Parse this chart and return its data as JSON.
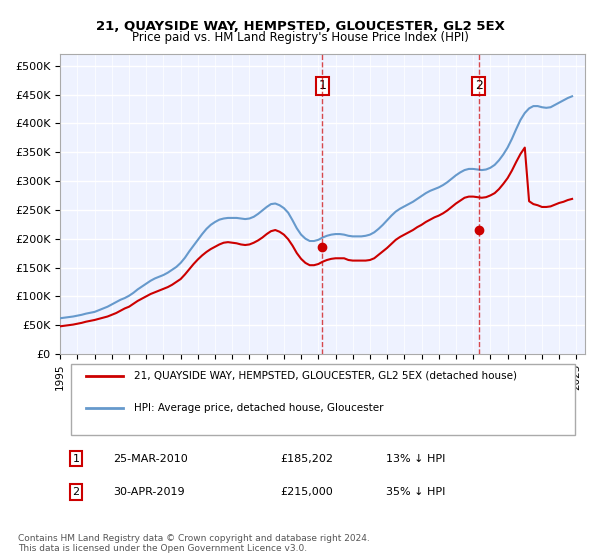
{
  "title": "21, QUAYSIDE WAY, HEMPSTED, GLOUCESTER, GL2 5EX",
  "subtitle": "Price paid vs. HM Land Registry's House Price Index (HPI)",
  "legend_line1": "21, QUAYSIDE WAY, HEMPSTED, GLOUCESTER, GL2 5EX (detached house)",
  "legend_line2": "HPI: Average price, detached house, Gloucester",
  "annotation1_label": "1",
  "annotation1_date": "25-MAR-2010",
  "annotation1_price": "£185,202",
  "annotation1_hpi": "13% ↓ HPI",
  "annotation2_label": "2",
  "annotation2_date": "30-APR-2019",
  "annotation2_price": "£215,000",
  "annotation2_hpi": "35% ↓ HPI",
  "footnote": "Contains HM Land Registry data © Crown copyright and database right 2024.\nThis data is licensed under the Open Government Licence v3.0.",
  "hpi_color": "#6699cc",
  "price_color": "#cc0000",
  "vline_color": "#cc0000",
  "background_color": "#eef2ff",
  "plot_bg_color": "#eef2ff",
  "grid_color": "#ffffff",
  "ylim": [
    0,
    520000
  ],
  "yticks": [
    0,
    50000,
    100000,
    150000,
    200000,
    250000,
    300000,
    350000,
    400000,
    450000,
    500000
  ],
  "ytick_labels": [
    "£0",
    "£50K",
    "£100K",
    "£150K",
    "£200K",
    "£250K",
    "£300K",
    "£350K",
    "£400K",
    "£450K",
    "£500K"
  ],
  "xlim_start": 1995.0,
  "xlim_end": 2025.5,
  "xticks": [
    1995,
    1996,
    1997,
    1998,
    1999,
    2000,
    2001,
    2002,
    2003,
    2004,
    2005,
    2006,
    2007,
    2008,
    2009,
    2010,
    2011,
    2012,
    2013,
    2014,
    2015,
    2016,
    2017,
    2018,
    2019,
    2020,
    2021,
    2022,
    2023,
    2024,
    2025
  ],
  "sale1_x": 2010.23,
  "sale1_y": 185202,
  "sale2_x": 2019.33,
  "sale2_y": 215000,
  "hpi_x": [
    1995.0,
    1995.25,
    1995.5,
    1995.75,
    1996.0,
    1996.25,
    1996.5,
    1996.75,
    1997.0,
    1997.25,
    1997.5,
    1997.75,
    1998.0,
    1998.25,
    1998.5,
    1998.75,
    1999.0,
    1999.25,
    1999.5,
    1999.75,
    2000.0,
    2000.25,
    2000.5,
    2000.75,
    2001.0,
    2001.25,
    2001.5,
    2001.75,
    2002.0,
    2002.25,
    2002.5,
    2002.75,
    2003.0,
    2003.25,
    2003.5,
    2003.75,
    2004.0,
    2004.25,
    2004.5,
    2004.75,
    2005.0,
    2005.25,
    2005.5,
    2005.75,
    2006.0,
    2006.25,
    2006.5,
    2006.75,
    2007.0,
    2007.25,
    2007.5,
    2007.75,
    2008.0,
    2008.25,
    2008.5,
    2008.75,
    2009.0,
    2009.25,
    2009.5,
    2009.75,
    2010.0,
    2010.25,
    2010.5,
    2010.75,
    2011.0,
    2011.25,
    2011.5,
    2011.75,
    2012.0,
    2012.25,
    2012.5,
    2012.75,
    2013.0,
    2013.25,
    2013.5,
    2013.75,
    2014.0,
    2014.25,
    2014.5,
    2014.75,
    2015.0,
    2015.25,
    2015.5,
    2015.75,
    2016.0,
    2016.25,
    2016.5,
    2016.75,
    2017.0,
    2017.25,
    2017.5,
    2017.75,
    2018.0,
    2018.25,
    2018.5,
    2018.75,
    2019.0,
    2019.25,
    2019.5,
    2019.75,
    2020.0,
    2020.25,
    2020.5,
    2020.75,
    2021.0,
    2021.25,
    2021.5,
    2021.75,
    2022.0,
    2022.25,
    2022.5,
    2022.75,
    2023.0,
    2023.25,
    2023.5,
    2023.75,
    2024.0,
    2024.25,
    2024.5,
    2024.75
  ],
  "hpi_y": [
    62000,
    63000,
    64000,
    65000,
    66500,
    68000,
    70000,
    71500,
    73000,
    76000,
    79000,
    82000,
    86000,
    90000,
    94000,
    97000,
    101000,
    106000,
    112000,
    117000,
    122000,
    127000,
    131000,
    134000,
    137000,
    141000,
    146000,
    151000,
    158000,
    167000,
    178000,
    188000,
    198000,
    208000,
    217000,
    224000,
    229000,
    233000,
    235000,
    236000,
    236000,
    236000,
    235000,
    234000,
    235000,
    238000,
    243000,
    249000,
    255000,
    260000,
    261000,
    258000,
    253000,
    245000,
    232000,
    218000,
    207000,
    200000,
    196000,
    196000,
    198000,
    202000,
    205000,
    207000,
    208000,
    208000,
    207000,
    205000,
    204000,
    204000,
    204000,
    205000,
    207000,
    211000,
    217000,
    224000,
    232000,
    240000,
    247000,
    252000,
    256000,
    260000,
    264000,
    269000,
    274000,
    279000,
    283000,
    286000,
    289000,
    293000,
    298000,
    304000,
    310000,
    315000,
    319000,
    321000,
    321000,
    320000,
    319000,
    320000,
    323000,
    328000,
    336000,
    346000,
    358000,
    373000,
    390000,
    406000,
    418000,
    426000,
    430000,
    430000,
    428000,
    427000,
    428000,
    432000,
    436000,
    440000,
    444000,
    447000
  ],
  "price_x": [
    1995.0,
    1995.25,
    1995.5,
    1995.75,
    1996.0,
    1996.25,
    1996.5,
    1996.75,
    1997.0,
    1997.25,
    1997.5,
    1997.75,
    1998.0,
    1998.25,
    1998.5,
    1998.75,
    1999.0,
    1999.25,
    1999.5,
    1999.75,
    2000.0,
    2000.25,
    2000.5,
    2000.75,
    2001.0,
    2001.25,
    2001.5,
    2001.75,
    2002.0,
    2002.25,
    2002.5,
    2002.75,
    2003.0,
    2003.25,
    2003.5,
    2003.75,
    2004.0,
    2004.25,
    2004.5,
    2004.75,
    2005.0,
    2005.25,
    2005.5,
    2005.75,
    2006.0,
    2006.25,
    2006.5,
    2006.75,
    2007.0,
    2007.25,
    2007.5,
    2007.75,
    2008.0,
    2008.25,
    2008.5,
    2008.75,
    2009.0,
    2009.25,
    2009.5,
    2009.75,
    2010.0,
    2010.25,
    2010.5,
    2010.75,
    2011.0,
    2011.25,
    2011.5,
    2011.75,
    2012.0,
    2012.25,
    2012.5,
    2012.75,
    2013.0,
    2013.25,
    2013.5,
    2013.75,
    2014.0,
    2014.25,
    2014.5,
    2014.75,
    2015.0,
    2015.25,
    2015.5,
    2015.75,
    2016.0,
    2016.25,
    2016.5,
    2016.75,
    2017.0,
    2017.25,
    2017.5,
    2017.75,
    2018.0,
    2018.25,
    2018.5,
    2018.75,
    2019.0,
    2019.25,
    2019.5,
    2019.75,
    2020.0,
    2020.25,
    2020.5,
    2020.75,
    2021.0,
    2021.25,
    2021.5,
    2021.75,
    2022.0,
    2022.25,
    2022.5,
    2022.75,
    2023.0,
    2023.25,
    2023.5,
    2023.75,
    2024.0,
    2024.25,
    2024.5,
    2024.75
  ],
  "price_y": [
    48000,
    49000,
    50000,
    51000,
    52500,
    54000,
    56000,
    57500,
    59000,
    61000,
    63000,
    65000,
    68000,
    71000,
    75000,
    79000,
    82000,
    87000,
    92000,
    96000,
    100000,
    104000,
    107000,
    110000,
    113000,
    116000,
    120000,
    125000,
    130000,
    138000,
    147000,
    156000,
    164000,
    171000,
    177000,
    182000,
    186000,
    190000,
    193000,
    194000,
    193000,
    192000,
    190000,
    189000,
    190000,
    193000,
    197000,
    202000,
    208000,
    213000,
    215000,
    212000,
    207000,
    199000,
    188000,
    175000,
    165000,
    158000,
    154000,
    154000,
    156000,
    160000,
    163000,
    165000,
    166000,
    166000,
    166000,
    163000,
    162000,
    162000,
    162000,
    162000,
    163000,
    166000,
    172000,
    178000,
    184000,
    191000,
    198000,
    203000,
    207000,
    211000,
    215000,
    220000,
    224000,
    229000,
    233000,
    237000,
    240000,
    244000,
    249000,
    255000,
    261000,
    266000,
    271000,
    273000,
    273000,
    272000,
    271000,
    272000,
    275000,
    279000,
    286000,
    295000,
    305000,
    318000,
    333000,
    347000,
    358000,
    265000,
    260000,
    258000,
    255000,
    255000,
    256000,
    259000,
    262000,
    264000,
    267000,
    269000
  ]
}
